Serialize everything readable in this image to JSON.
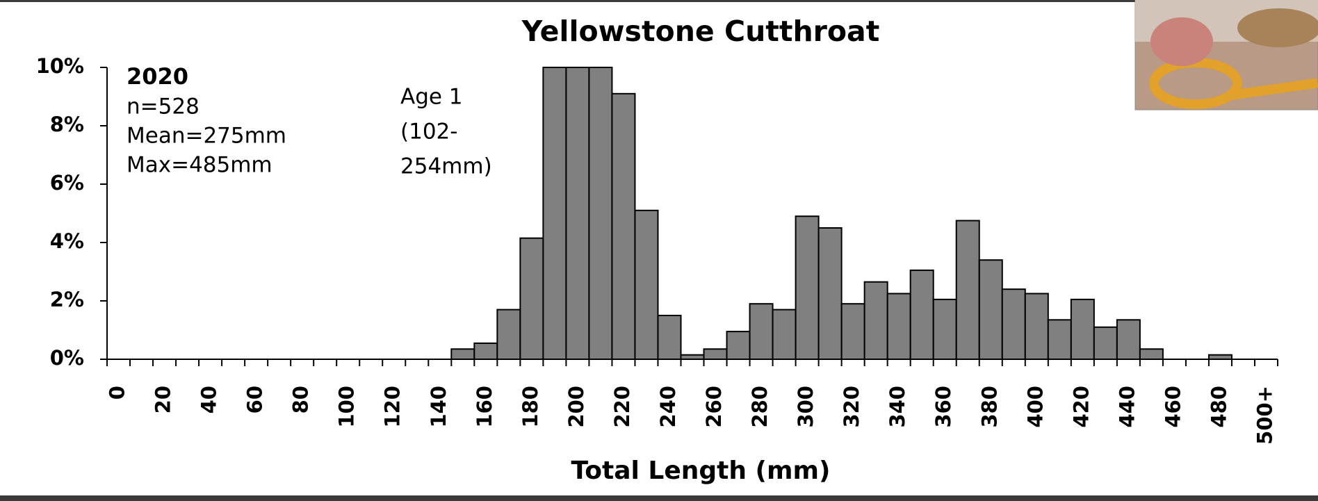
{
  "chart_data": {
    "type": "bar",
    "title": "Yellowstone Cutthroat",
    "x_label": "Total Length (mm)",
    "annotations": {
      "year": "2020",
      "n": "n=528",
      "mean": "Mean=275mm",
      "max": "Max=485mm",
      "age": [
        "Age 1",
        "(102-",
        "254mm)"
      ]
    },
    "categories": [
      "0",
      null,
      "20",
      null,
      "40",
      null,
      "60",
      null,
      "80",
      null,
      "100",
      null,
      "120",
      null,
      "140",
      null,
      "160",
      null,
      "180",
      null,
      "200",
      null,
      "220",
      null,
      "240",
      null,
      "260",
      null,
      "280",
      null,
      "300",
      null,
      "320",
      null,
      "340",
      null,
      "360",
      null,
      "380",
      null,
      "400",
      null,
      "420",
      null,
      "440",
      null,
      "460",
      null,
      "480",
      null,
      "500+"
    ],
    "values": [
      0,
      0,
      0,
      0,
      0,
      0,
      0,
      0,
      0,
      0,
      0,
      0,
      0,
      0,
      0,
      0.35,
      0.55,
      1.7,
      4.15,
      10,
      10,
      10,
      9.1,
      5.1,
      1.5,
      0.15,
      0.35,
      0.95,
      1.9,
      1.7,
      4.9,
      4.5,
      1.9,
      2.65,
      2.25,
      3.05,
      2.05,
      4.75,
      3.4,
      2.4,
      2.25,
      1.35,
      2.05,
      1.1,
      1.35,
      0.35,
      0,
      0,
      0.15,
      0,
      0
    ],
    "color": "#808080",
    "ylim": [
      0,
      10
    ],
    "yticks": [
      {
        "value": 0,
        "label": "0%"
      },
      {
        "value": 2,
        "label": "2%"
      },
      {
        "value": 4,
        "label": "4%"
      },
      {
        "value": 6,
        "label": "6%"
      },
      {
        "value": 8,
        "label": "8%"
      },
      {
        "value": 10,
        "label": "10%"
      }
    ],
    "grid": false
  }
}
